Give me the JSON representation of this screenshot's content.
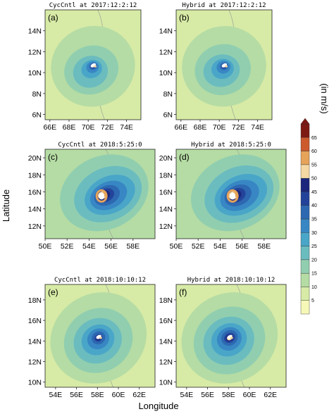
{
  "figure": {
    "xlabel": "Longitude",
    "ylabel": "Latitude",
    "units": "(in m/s)"
  },
  "colorbar": {
    "levels": [
      "5",
      "10",
      "15",
      "20",
      "25",
      "30",
      "35",
      "40",
      "45",
      "50",
      "55",
      "60",
      "65"
    ],
    "colors": [
      "#f6f8b8",
      "#d7eba6",
      "#b5dca4",
      "#91ceb0",
      "#6bbcbf",
      "#4aa6c8",
      "#3887c4",
      "#2d68b1",
      "#23439a",
      "#1b267c",
      "#f5d7a3",
      "#e6a35a",
      "#cc5a2d",
      "#7d1a14"
    ]
  },
  "panels": [
    {
      "id": "a",
      "label": "(a)",
      "title": "CycCntl at 2017:12:2:12",
      "xticks": [
        "66E",
        "68E",
        "70E",
        "72E",
        "74E"
      ],
      "yticks": [
        "14N",
        "12N",
        "10N",
        "8N",
        "6N"
      ],
      "lon": [
        65.5,
        75.5
      ],
      "lat": [
        5.5,
        16
      ],
      "center": [
        70.5,
        10.6
      ]
    },
    {
      "id": "b",
      "label": "(b)",
      "title": "Hybrid at 2017:12:2:12",
      "xticks": [
        "66E",
        "68E",
        "70E",
        "72E",
        "74E"
      ],
      "yticks": [
        "14N",
        "12N",
        "10N",
        "8N",
        "6N"
      ],
      "lon": [
        65.5,
        75.5
      ],
      "lat": [
        5.5,
        16
      ],
      "center": [
        70.5,
        10.6
      ]
    },
    {
      "id": "c",
      "label": "(c)",
      "title": "CycCntl at 2018:5:25:0",
      "xticks": [
        "50E",
        "52E",
        "54E",
        "56E",
        "58E"
      ],
      "yticks": [
        "20N",
        "18N",
        "16N",
        "14N",
        "12N"
      ],
      "lon": [
        50,
        60
      ],
      "lat": [
        10.5,
        21
      ],
      "center": [
        55.2,
        15.6
      ]
    },
    {
      "id": "d",
      "label": "(d)",
      "title": "Hybrid at 2018:5:25:0",
      "xticks": [
        "50E",
        "52E",
        "54E",
        "56E",
        "58E"
      ],
      "yticks": [
        "20N",
        "18N",
        "16N",
        "14N",
        "12N"
      ],
      "lon": [
        50,
        60
      ],
      "lat": [
        10.5,
        21
      ],
      "center": [
        55.2,
        15.6
      ]
    },
    {
      "id": "e",
      "label": "(e)",
      "title": "CycCntl at 2018:10:10:12",
      "xticks": [
        "54E",
        "56E",
        "58E",
        "60E",
        "62E"
      ],
      "yticks": [
        "18N",
        "16N",
        "14N",
        "12N",
        "10N"
      ],
      "lon": [
        53,
        63.5
      ],
      "lat": [
        9.5,
        19.5
      ],
      "center": [
        58.1,
        14.3
      ]
    },
    {
      "id": "f",
      "label": "(f)",
      "title": "Hybrid at 2018:10:10:12",
      "xticks": [
        "54E",
        "56E",
        "58E",
        "60E",
        "62E"
      ],
      "yticks": [
        "18N",
        "16N",
        "14N",
        "12N",
        "10N"
      ],
      "lon": [
        53,
        63.5
      ],
      "lat": [
        9.5,
        19.5
      ],
      "center": [
        58.1,
        14.3
      ]
    }
  ]
}
